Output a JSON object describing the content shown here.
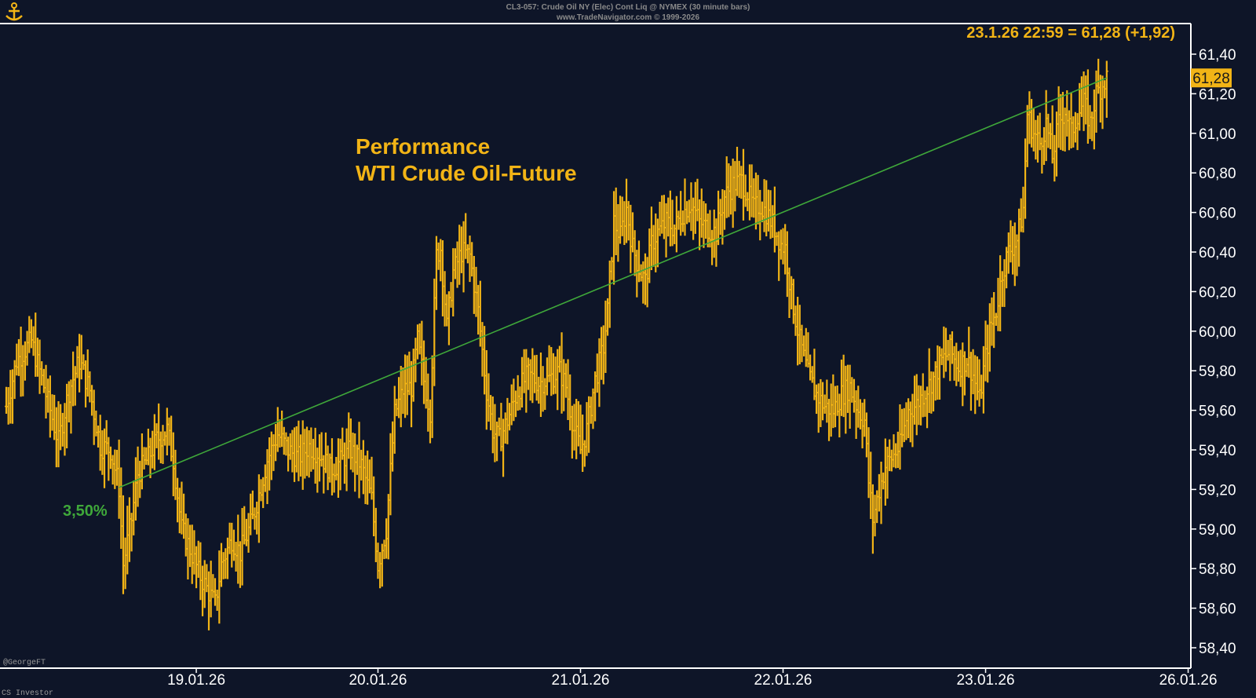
{
  "header": {
    "line1": "CL3-057:  Crude Oil NY (Elec) Cont Liq @ NYMEX  (30 minute bars)",
    "line2": "www.TradeNavigator.com © 1999-2026"
  },
  "logo_icon": "anchor-icon",
  "footer": {
    "signature": "@GeorgeFT",
    "watermark": "CS Investor"
  },
  "colors": {
    "background": "#0e1528",
    "bars": "#f2b416",
    "trendline": "#3fa83a",
    "axis": "#ffffff"
  },
  "chart_data": {
    "type": "ohlc-bar",
    "title_lines": [
      "Performance",
      "WTI Crude Oil-Future"
    ],
    "last_label": "23.1.26 22:59 = 61,28 (+1,92)",
    "last_price_marker": "61,28",
    "trendline_label": "3,50%",
    "trendline": {
      "from": {
        "bar": 54,
        "y": 59.21
      },
      "to": {
        "bar": 527,
        "y": 61.28
      }
    },
    "ylim": [
      58.4,
      61.5
    ],
    "y_ticks": [
      "61,40",
      "61,20",
      "61,00",
      "60,80",
      "60,60",
      "60,40",
      "60,20",
      "60,00",
      "59,80",
      "59,60",
      "59,40",
      "59,20",
      "59,00",
      "58,80",
      "58,60",
      "58,40"
    ],
    "y_tick_values": [
      61.4,
      61.2,
      61.0,
      60.8,
      60.6,
      60.4,
      60.2,
      60.0,
      59.8,
      59.6,
      59.4,
      59.2,
      59.0,
      58.8,
      58.6,
      58.4
    ],
    "x_ticks": [
      "19.01.26",
      "20.01.26",
      "21.01.26",
      "22.01.26",
      "23.01.26",
      "26.01.26"
    ],
    "x_tick_bars": [
      91,
      178,
      275,
      372,
      469,
      566
    ],
    "path_keypoints": [
      [
        0,
        59.62
      ],
      [
        5,
        59.85
      ],
      [
        12,
        59.95
      ],
      [
        18,
        59.72
      ],
      [
        25,
        59.44
      ],
      [
        30,
        59.7
      ],
      [
        35,
        59.85
      ],
      [
        40,
        59.7
      ],
      [
        45,
        59.42
      ],
      [
        50,
        59.4
      ],
      [
        54,
        59.21
      ],
      [
        56,
        58.82
      ],
      [
        60,
        59.05
      ],
      [
        63,
        59.28
      ],
      [
        68,
        59.36
      ],
      [
        72,
        59.45
      ],
      [
        77,
        59.5
      ],
      [
        80,
        59.35
      ],
      [
        84,
        59.0
      ],
      [
        88,
        58.9
      ],
      [
        92,
        58.78
      ],
      [
        96,
        58.7
      ],
      [
        100,
        58.62
      ],
      [
        103,
        58.82
      ],
      [
        108,
        58.95
      ],
      [
        112,
        58.88
      ],
      [
        118,
        59.05
      ],
      [
        125,
        59.35
      ],
      [
        130,
        59.48
      ],
      [
        135,
        59.4
      ],
      [
        140,
        59.36
      ],
      [
        145,
        59.42
      ],
      [
        150,
        59.38
      ],
      [
        155,
        59.3
      ],
      [
        160,
        59.34
      ],
      [
        165,
        59.4
      ],
      [
        170,
        59.32
      ],
      [
        175,
        59.15
      ],
      [
        178,
        58.82
      ],
      [
        182,
        59.0
      ],
      [
        186,
        59.58
      ],
      [
        190,
        59.7
      ],
      [
        194,
        59.72
      ],
      [
        197,
        59.95
      ],
      [
        200,
        59.75
      ],
      [
        203,
        59.6
      ],
      [
        206,
        60.38
      ],
      [
        208,
        60.42
      ],
      [
        211,
        60.02
      ],
      [
        214,
        60.3
      ],
      [
        218,
        60.4
      ],
      [
        222,
        60.38
      ],
      [
        226,
        60.1
      ],
      [
        230,
        59.7
      ],
      [
        233,
        59.5
      ],
      [
        236,
        59.45
      ],
      [
        240,
        59.55
      ],
      [
        245,
        59.7
      ],
      [
        250,
        59.78
      ],
      [
        255,
        59.74
      ],
      [
        260,
        59.76
      ],
      [
        265,
        59.8
      ],
      [
        268,
        59.72
      ],
      [
        272,
        59.5
      ],
      [
        275,
        59.4
      ],
      [
        278,
        59.5
      ],
      [
        282,
        59.75
      ],
      [
        286,
        59.92
      ],
      [
        288,
        60.1
      ],
      [
        291,
        60.55
      ],
      [
        294,
        60.48
      ],
      [
        297,
        60.62
      ],
      [
        300,
        60.42
      ],
      [
        303,
        60.32
      ],
      [
        306,
        60.25
      ],
      [
        309,
        60.44
      ],
      [
        312,
        60.5
      ],
      [
        316,
        60.55
      ],
      [
        320,
        60.52
      ],
      [
        324,
        60.6
      ],
      [
        328,
        60.65
      ],
      [
        332,
        60.55
      ],
      [
        336,
        60.52
      ],
      [
        340,
        60.5
      ],
      [
        344,
        60.68
      ],
      [
        348,
        60.74
      ],
      [
        352,
        60.76
      ],
      [
        355,
        60.7
      ],
      [
        358,
        60.62
      ],
      [
        361,
        60.64
      ],
      [
        364,
        60.6
      ],
      [
        368,
        60.52
      ],
      [
        371,
        60.44
      ],
      [
        373,
        60.42
      ],
      [
        376,
        60.18
      ],
      [
        380,
        59.95
      ],
      [
        384,
        59.78
      ],
      [
        388,
        59.68
      ],
      [
        392,
        59.62
      ],
      [
        396,
        59.6
      ],
      [
        400,
        59.68
      ],
      [
        404,
        59.72
      ],
      [
        408,
        59.6
      ],
      [
        411,
        59.55
      ],
      [
        413,
        59.24
      ],
      [
        415,
        59.05
      ],
      [
        418,
        59.2
      ],
      [
        421,
        59.32
      ],
      [
        424,
        59.36
      ],
      [
        428,
        59.42
      ],
      [
        432,
        59.6
      ],
      [
        436,
        59.63
      ],
      [
        440,
        59.7
      ],
      [
        444,
        59.76
      ],
      [
        448,
        59.85
      ],
      [
        452,
        59.9
      ],
      [
        456,
        59.82
      ],
      [
        460,
        59.86
      ],
      [
        463,
        59.78
      ],
      [
        466,
        59.65
      ],
      [
        468,
        59.8
      ],
      [
        471,
        60.0
      ],
      [
        474,
        60.1
      ],
      [
        477,
        60.3
      ],
      [
        480,
        60.4
      ],
      [
        484,
        60.46
      ],
      [
        487,
        60.62
      ],
      [
        489,
        61.1
      ],
      [
        492,
        61.0
      ],
      [
        495,
        60.95
      ],
      [
        498,
        61.05
      ],
      [
        501,
        60.88
      ],
      [
        504,
        61.05
      ],
      [
        507,
        61.12
      ],
      [
        510,
        61.0
      ],
      [
        513,
        61.1
      ],
      [
        516,
        61.15
      ],
      [
        519,
        61.05
      ],
      [
        522,
        61.2
      ],
      [
        525,
        61.25
      ],
      [
        527,
        61.28
      ]
    ]
  }
}
